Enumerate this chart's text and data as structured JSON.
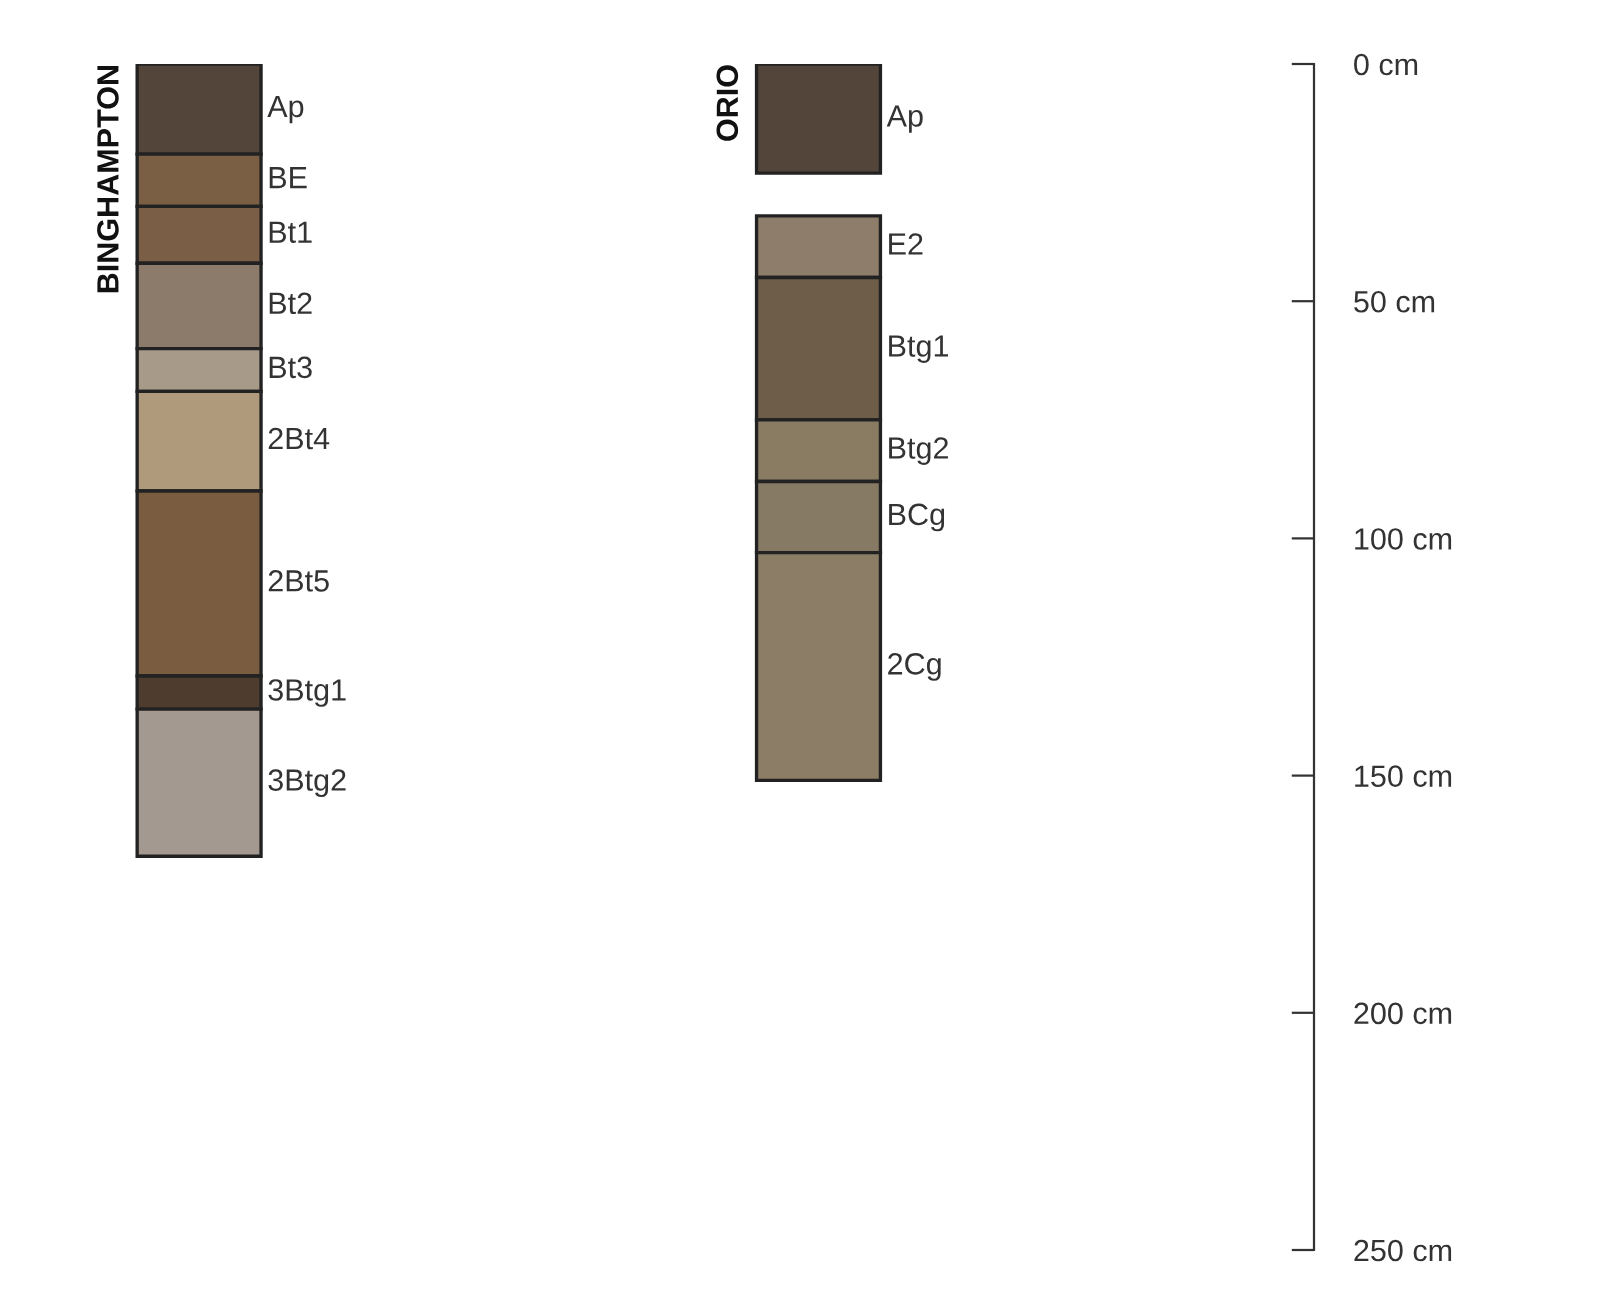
{
  "chart_data": {
    "type": "bar",
    "categories": [
      "BINGHAMPTON",
      "ORIO"
    ],
    "series": [
      {
        "name": "Ap",
        "color": "#54453a",
        "values": [
          19,
          23
        ],
        "base": [
          0,
          0
        ]
      },
      {
        "name": "BE",
        "color": "#7a5f44",
        "values": [
          11,
          null
        ],
        "base": [
          19,
          null
        ]
      },
      {
        "name": "Bt1",
        "color": "#7a5e45",
        "values": [
          12,
          null
        ],
        "base": [
          30,
          null
        ]
      },
      {
        "name": "Bt2",
        "color": "#8c7b6b",
        "values": [
          18,
          null
        ],
        "base": [
          42,
          null
        ]
      },
      {
        "name": "Bt3",
        "color": "#a89a88",
        "values": [
          9,
          null
        ],
        "base": [
          60,
          null
        ]
      },
      {
        "name": "2Bt4",
        "color": "#b09a7c",
        "values": [
          21,
          null
        ],
        "base": [
          69,
          null
        ]
      },
      {
        "name": "2Bt5",
        "color": "#7a5d40",
        "values": [
          39,
          null
        ],
        "base": [
          90,
          null
        ]
      },
      {
        "name": "3Btg1",
        "color": "#4e3d2e",
        "values": [
          7,
          null
        ],
        "base": [
          129,
          null
        ]
      },
      {
        "name": "3Btg2",
        "color": "#a39990",
        "values": [
          31,
          null
        ],
        "base": [
          136,
          null
        ]
      },
      {
        "name": "E2",
        "color": "#8e7d6a",
        "values": [
          null,
          13
        ],
        "base": [
          null,
          32
        ]
      },
      {
        "name": "Btg1",
        "color": "#6e5d48",
        "values": [
          null,
          30
        ],
        "base": [
          null,
          45
        ]
      },
      {
        "name": "Btg2",
        "color": "#8a7c62",
        "values": [
          null,
          13
        ],
        "base": [
          null,
          75
        ]
      },
      {
        "name": "BCg",
        "color": "#877a64",
        "values": [
          null,
          15
        ],
        "base": [
          null,
          88
        ]
      },
      {
        "name": "2Cg",
        "color": "#8c7d66",
        "values": [
          null,
          48
        ],
        "base": [
          null,
          103
        ]
      }
    ],
    "ylim": [
      250,
      0
    ],
    "yticks": [
      {
        "value": 0,
        "label": "0 cm"
      },
      {
        "value": 50,
        "label": "50 cm"
      },
      {
        "value": 100,
        "label": "100 cm"
      },
      {
        "value": 150,
        "label": "150 cm"
      },
      {
        "value": 200,
        "label": "200 cm"
      },
      {
        "value": 250,
        "label": "250 cm"
      }
    ],
    "grid": false,
    "legend": false
  }
}
